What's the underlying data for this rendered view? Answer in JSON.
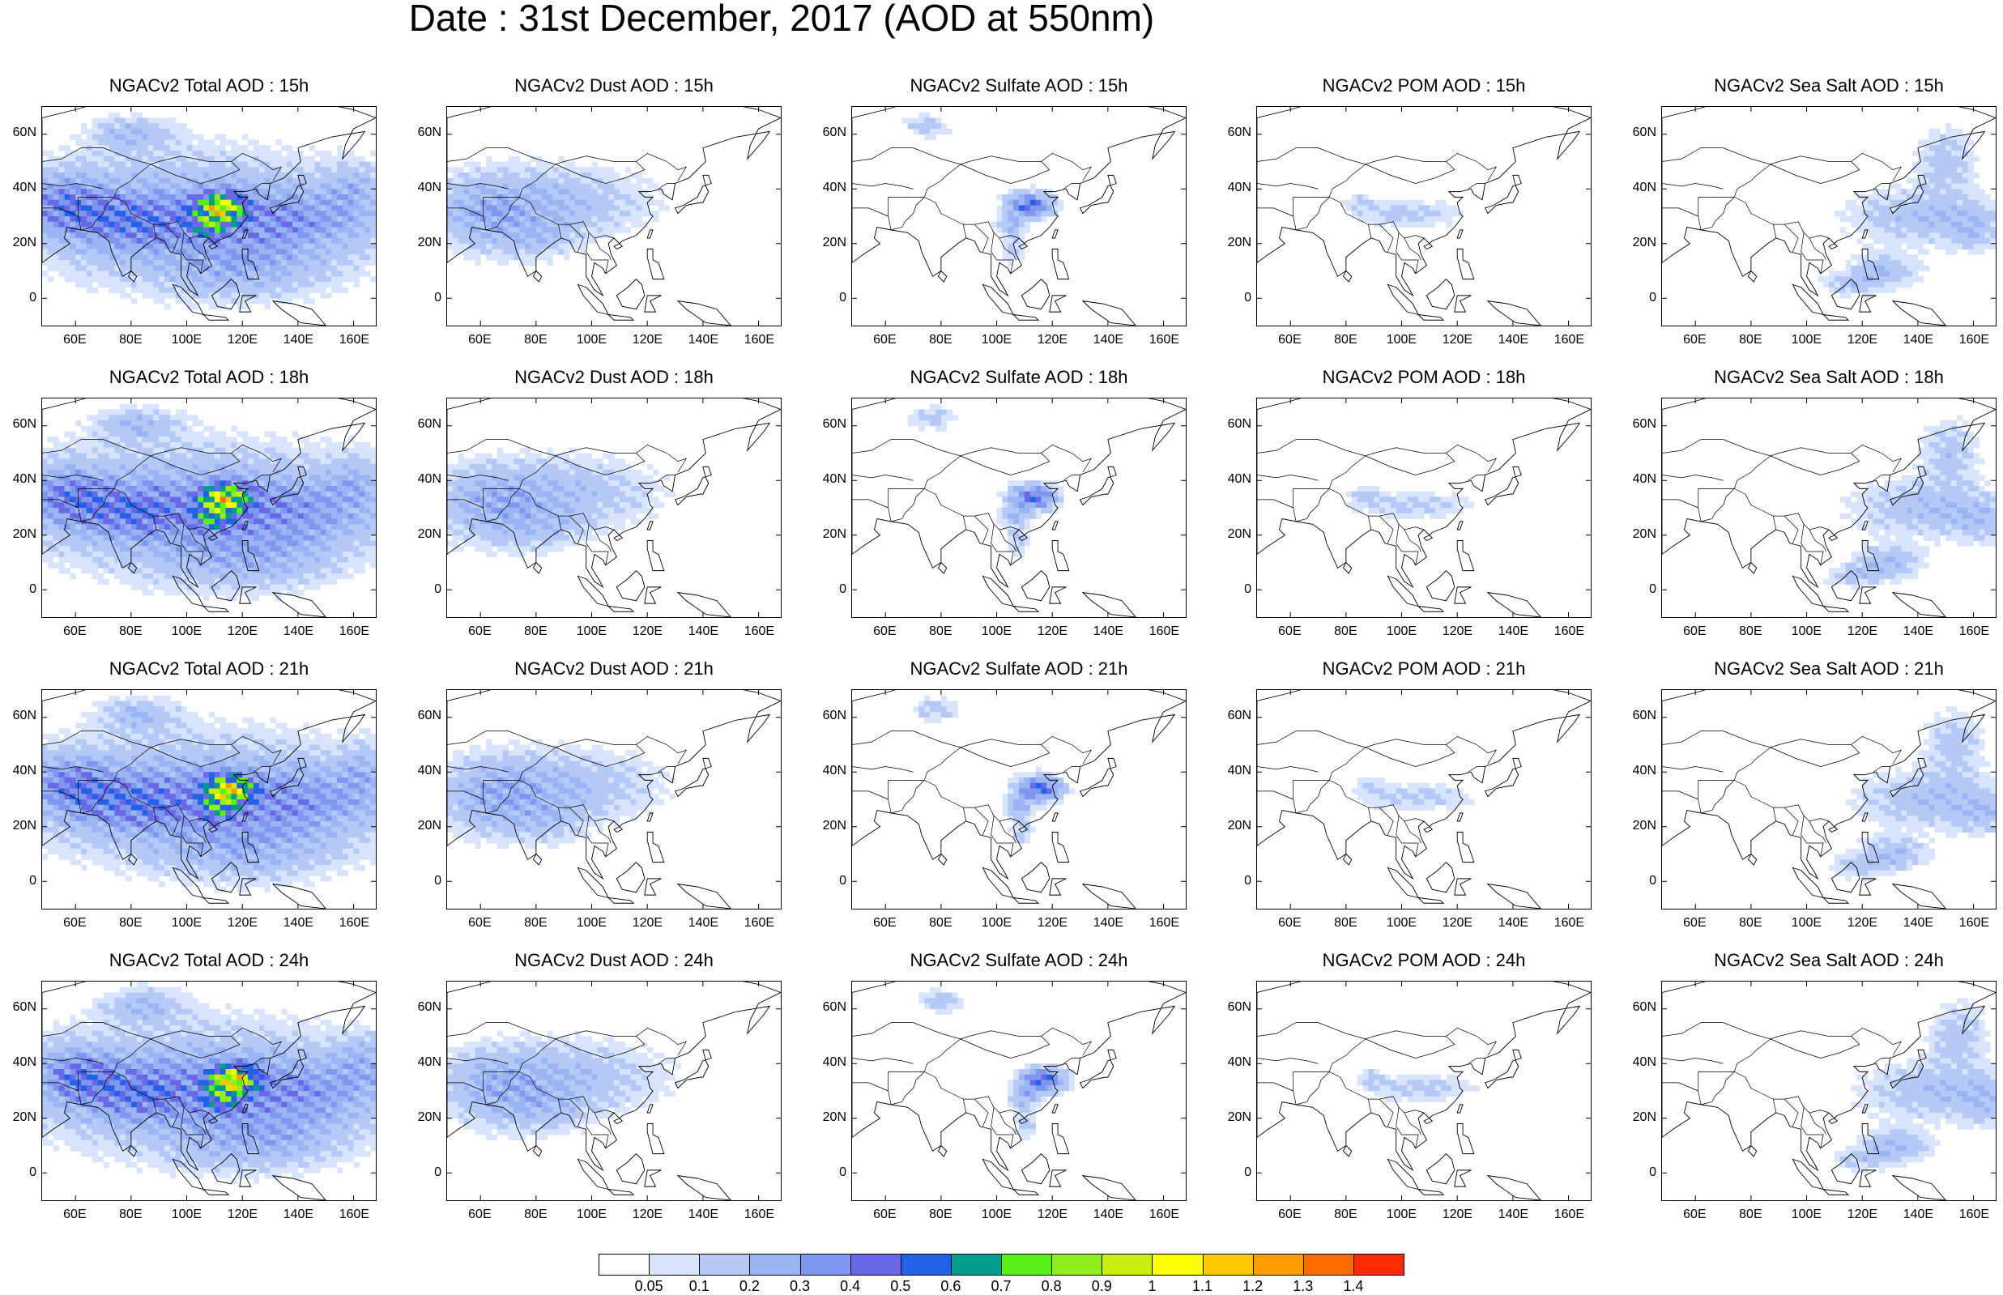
{
  "title": "Date : 31st December, 2017 (AOD at 550nm)",
  "panels": [
    {
      "title": "NGACv2 Total AOD : 15h",
      "species": "total",
      "hour": 15
    },
    {
      "title": "NGACv2 Dust AOD : 15h",
      "species": "dust",
      "hour": 15
    },
    {
      "title": "NGACv2 Sulfate AOD : 15h",
      "species": "sulfate",
      "hour": 15
    },
    {
      "title": "NGACv2 POM AOD : 15h",
      "species": "pom",
      "hour": 15
    },
    {
      "title": "NGACv2 Sea Salt AOD : 15h",
      "species": "seasalt",
      "hour": 15
    },
    {
      "title": "NGACv2 Total AOD : 18h",
      "species": "total",
      "hour": 18
    },
    {
      "title": "NGACv2 Dust AOD : 18h",
      "species": "dust",
      "hour": 18
    },
    {
      "title": "NGACv2 Sulfate AOD : 18h",
      "species": "sulfate",
      "hour": 18
    },
    {
      "title": "NGACv2 POM AOD : 18h",
      "species": "pom",
      "hour": 18
    },
    {
      "title": "NGACv2 Sea Salt AOD : 18h",
      "species": "seasalt",
      "hour": 18
    },
    {
      "title": "NGACv2 Total AOD : 21h",
      "species": "total",
      "hour": 21
    },
    {
      "title": "NGACv2 Dust AOD : 21h",
      "species": "dust",
      "hour": 21
    },
    {
      "title": "NGACv2 Sulfate AOD : 21h",
      "species": "sulfate",
      "hour": 21
    },
    {
      "title": "NGACv2 POM AOD : 21h",
      "species": "pom",
      "hour": 21
    },
    {
      "title": "NGACv2 Sea Salt AOD : 21h",
      "species": "seasalt",
      "hour": 21
    },
    {
      "title": "NGACv2 Total AOD : 24h",
      "species": "total",
      "hour": 24
    },
    {
      "title": "NGACv2 Dust AOD : 24h",
      "species": "dust",
      "hour": 24
    },
    {
      "title": "NGACv2 Sulfate AOD : 24h",
      "species": "sulfate",
      "hour": 24
    },
    {
      "title": "NGACv2 POM AOD : 24h",
      "species": "pom",
      "hour": 24
    },
    {
      "title": "NGACv2 Sea Salt  AOD : 24h",
      "species": "seasalt",
      "hour": 24
    }
  ],
  "axes": {
    "lon_range": [
      48,
      168
    ],
    "lat_range": [
      -10,
      70
    ],
    "xticks": [
      "60E",
      "80E",
      "100E",
      "120E",
      "140E",
      "160E"
    ],
    "xtick_values": [
      60,
      80,
      100,
      120,
      140,
      160
    ],
    "yticks": [
      "60N",
      "40N",
      "20N",
      "0"
    ],
    "ytick_values": [
      60,
      40,
      20,
      0
    ]
  },
  "colorbar": {
    "labels": [
      "0.05",
      "0.1",
      "0.2",
      "0.3",
      "0.4",
      "0.5",
      "0.6",
      "0.7",
      "0.8",
      "0.9",
      "1",
      "1.1",
      "1.2",
      "1.3",
      "1.4"
    ],
    "colors": [
      "#ffffff",
      "#d8e4fb",
      "#b5c9f7",
      "#9ab4f4",
      "#7f97ef",
      "#6969e6",
      "#2361e8",
      "#069c8c",
      "#58f017",
      "#8ef01a",
      "#c8f00f",
      "#ffff00",
      "#ffc800",
      "#ff9c00",
      "#ff6d00",
      "#ff2a00"
    ]
  }
}
